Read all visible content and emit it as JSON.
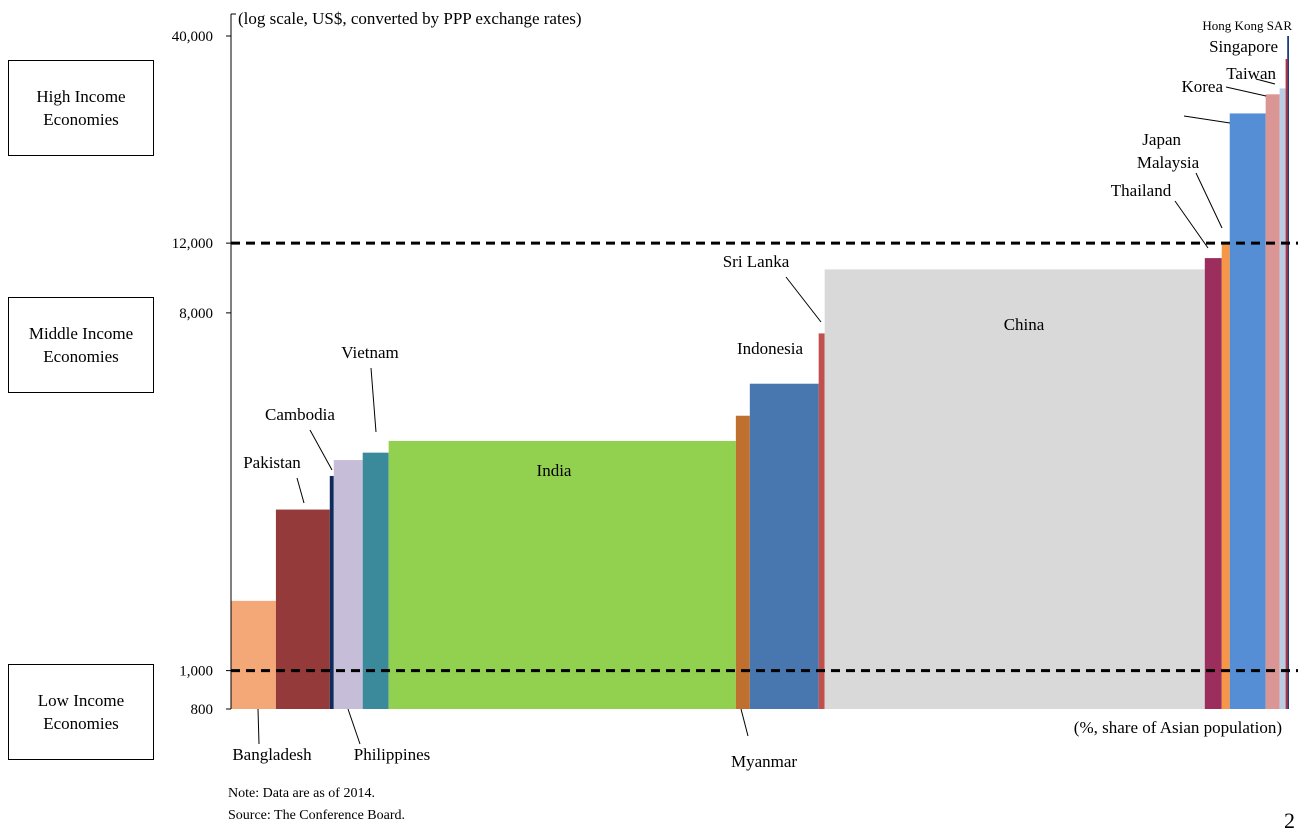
{
  "income_groups": {
    "high": "High Income Economies",
    "middle": "Middle Income Economies",
    "low": "Low Income Economies"
  },
  "note": "Note: Data are as of 2014.",
  "source": "Source: The Conference Board.",
  "page_number": "2",
  "chart_data": {
    "type": "bar",
    "variable_width": true,
    "y_scale": "log",
    "yaxis_note": "(log scale, US$, converted by PPP exchange rates)",
    "xaxis_note": "(%, share of Asian population)",
    "ylim": [
      800,
      40000
    ],
    "y_ticks": [
      {
        "value": 40000,
        "label": "40,000"
      },
      {
        "value": 12000,
        "label": "12,000"
      },
      {
        "value": 8000,
        "label": "8,000"
      },
      {
        "value": 1000,
        "label": "1,000"
      },
      {
        "value": 800,
        "label": "800"
      }
    ],
    "threshold_lines": [
      12000,
      1000
    ],
    "grid": false,
    "bars": [
      {
        "name": "Bangladesh",
        "share": 4.5,
        "value": 1500,
        "color": "#F5A877"
      },
      {
        "name": "Pakistan",
        "share": 5.4,
        "value": 2550,
        "color": "#953A3A"
      },
      {
        "name": "Cambodia",
        "share": 0.4,
        "value": 3100,
        "color": "#0F2B5B"
      },
      {
        "name": "Philippines",
        "share": 2.9,
        "value": 3400,
        "color": "#C6BDD9"
      },
      {
        "name": "Vietnam",
        "share": 2.6,
        "value": 3550,
        "color": "#3A8A9B"
      },
      {
        "name": "India",
        "share": 34.8,
        "value": 3800,
        "color": "#92D050"
      },
      {
        "name": "Myanmar",
        "share": 1.4,
        "value": 4400,
        "color": "#C0702E"
      },
      {
        "name": "Indonesia",
        "share": 6.9,
        "value": 5300,
        "color": "#4877B0"
      },
      {
        "name": "Sri Lanka",
        "share": 0.6,
        "value": 7100,
        "color": "#C0504D"
      },
      {
        "name": "China",
        "share": 38.1,
        "value": 10300,
        "color": "#D9D9D9"
      },
      {
        "name": "Thailand",
        "share": 1.7,
        "value": 11000,
        "color": "#9B2E5C"
      },
      {
        "name": "Malaysia",
        "share": 0.8,
        "value": 12100,
        "color": "#F79646"
      },
      {
        "name": "Japan",
        "share": 3.6,
        "value": 25500,
        "color": "#558ED5"
      },
      {
        "name": "Korea",
        "share": 1.4,
        "value": 28500,
        "color": "#D99694"
      },
      {
        "name": "Taiwan",
        "share": 0.6,
        "value": 29500,
        "color": "#B9CDE5"
      },
      {
        "name": "Singapore",
        "share": 0.16,
        "value": 35000,
        "color": "#E02020"
      },
      {
        "name": "Hong Kong SAR",
        "share": 0.18,
        "value": 40000,
        "color": "#1F3D7A"
      }
    ]
  }
}
